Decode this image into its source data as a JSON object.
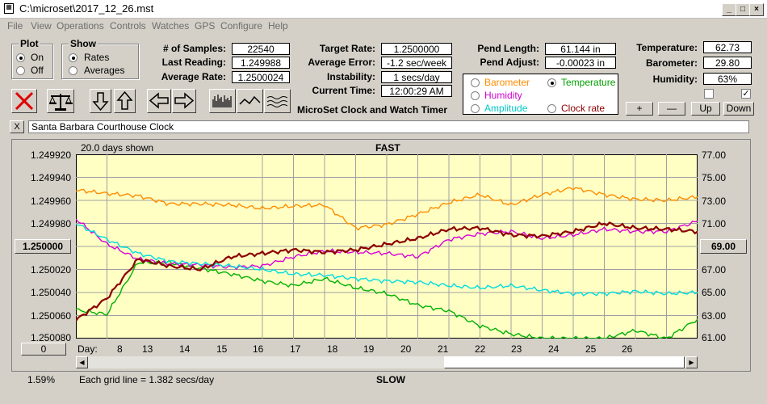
{
  "window": {
    "title": "C:\\microset\\2017_12_26.mst"
  },
  "menu": [
    "File",
    "View",
    "Operations",
    "Controls",
    "Watches",
    "GPS",
    "Configure",
    "Help"
  ],
  "plot_group": {
    "title": "Plot",
    "on_label": "On",
    "off_label": "Off",
    "selected": "On"
  },
  "show_group": {
    "title": "Show",
    "rates_label": "Rates",
    "averages_label": "Averages",
    "selected": "Rates"
  },
  "stats": {
    "samples_label": "# of Samples:",
    "samples": "22540",
    "last_reading_label": "Last Reading:",
    "last_reading": "1.249988",
    "average_rate_label": "Average Rate:",
    "average_rate": "1.2500024",
    "target_rate_label": "Target Rate:",
    "target_rate": "1.2500000",
    "average_error_label": "Average Error:",
    "average_error": "-1.2 sec/week",
    "instability_label": "Instability:",
    "instability": "1 secs/day",
    "current_time_label": "Current Time:",
    "current_time": "12:00:29 AM",
    "pend_length_label": "Pend Length:",
    "pend_length": "61.144 in",
    "pend_adjust_label": "Pend Adjust:",
    "pend_adjust": "-0.00023 in",
    "temperature_label": "Temperature:",
    "temperature": "62.73",
    "barometer_label": "Barometer:",
    "barometer": "29.80",
    "humidity_label": "Humidity:",
    "humidity": "63%"
  },
  "app_name": "MicroSet Clock and Watch Timer",
  "sensor_select": {
    "barometer": "Barometer",
    "temperature": "Temperature",
    "humidity": "Humidity",
    "amplitude": "Amplitude",
    "clock_rate": "Clock rate",
    "selected": "Temperature"
  },
  "adjust_buttons": {
    "plus": "+",
    "minus": "—",
    "up": "Up",
    "down": "Down"
  },
  "clock_name": "Santa Barbara Courthouse Clock",
  "close_x": "X",
  "colors": {
    "barometer": "#ff8c00",
    "temperature": "#00b000",
    "humidity": "#d800d8",
    "amplitude": "#00dddd",
    "clock_rate": "#8b0000",
    "plot_bg": "#ffffc4"
  },
  "chart_header": {
    "days_shown": "20.0 days shown",
    "fast": "FAST",
    "slow": "SLOW",
    "grid_note": "Each grid line = 1.382 secs/day",
    "percent": "1.59%",
    "day_label": "Day:"
  },
  "chart_data": {
    "type": "line",
    "x_label": "Day:",
    "x_ticks": [
      8,
      13,
      14,
      15,
      16,
      17,
      18,
      19,
      20,
      21,
      22,
      23,
      24,
      25,
      26
    ],
    "left_axis": {
      "ticks": [
        "1.249920",
        "1.249940",
        "1.249960",
        "1.249980",
        "1.250000",
        "1.250020",
        "1.250040",
        "1.250060",
        "1.250080"
      ],
      "center_button": "1.250000",
      "bottom_button": "0"
    },
    "right_axis": {
      "ticks": [
        "77.00",
        "75.00",
        "73.00",
        "71.00",
        "69.00",
        "67.00",
        "65.00",
        "63.00",
        "61.00"
      ],
      "center_button": "69.00"
    },
    "series": [
      {
        "name": "Barometer",
        "color": "#ff8c00",
        "x": [
          7,
          8,
          9,
          10,
          11,
          12,
          13,
          14,
          15,
          16,
          17,
          18,
          19,
          20,
          21,
          22,
          23,
          24,
          25,
          26,
          27
        ],
        "y": [
          73.9,
          73.6,
          73.4,
          72.7,
          72.7,
          72.6,
          72.3,
          72.5,
          72.6,
          70.6,
          70.9,
          71.8,
          72.8,
          73.5,
          72.6,
          73.5,
          74.1,
          73.5,
          73.1,
          73.0,
          73.3
        ]
      },
      {
        "name": "Temperature",
        "color": "#00b000",
        "x": [
          7,
          8,
          9,
          10,
          11,
          12,
          13,
          14,
          15,
          16,
          17,
          18,
          19,
          20,
          21,
          22,
          23,
          24,
          25,
          26,
          27
        ],
        "y": [
          63.5,
          63.1,
          67.6,
          67.6,
          67.1,
          66.6,
          66.0,
          65.6,
          66.2,
          65.4,
          64.9,
          63.9,
          63.4,
          62.1,
          61.4,
          61.0,
          61.0,
          61.0,
          61.7,
          61.0,
          62.7
        ]
      },
      {
        "name": "Humidity",
        "color": "#d800d8",
        "x": [
          7,
          8,
          9,
          10,
          11,
          12,
          13,
          14,
          15,
          16,
          17,
          18,
          19,
          20,
          21,
          22,
          23,
          24,
          25,
          26,
          27
        ],
        "y": [
          71.4,
          69.2,
          67.9,
          67.5,
          67.4,
          67.2,
          67.3,
          68.1,
          68.6,
          68.5,
          68.4,
          68.1,
          69.6,
          70.1,
          70.3,
          69.7,
          70.0,
          70.5,
          70.3,
          70.3,
          71.2
        ]
      },
      {
        "name": "Amplitude",
        "color": "#00dddd",
        "x": [
          7,
          8,
          9,
          10,
          11,
          12,
          13,
          14,
          15,
          16,
          17,
          18,
          19,
          20,
          21,
          22,
          23,
          24,
          25,
          26,
          27
        ],
        "y": [
          71.0,
          69.6,
          68.4,
          67.7,
          67.5,
          67.3,
          67.0,
          66.6,
          66.5,
          66.2,
          66.0,
          65.9,
          65.6,
          65.4,
          65.6,
          65.2,
          64.9,
          64.9,
          65.1,
          64.9,
          65.0
        ]
      },
      {
        "name": "Clock rate",
        "color": "#8b0000",
        "x": [
          7,
          8,
          9,
          10,
          11,
          12,
          13,
          14,
          15,
          16,
          17,
          18,
          19,
          20,
          21,
          22,
          23,
          24,
          25,
          26,
          27
        ],
        "y": [
          62.6,
          64.5,
          67.9,
          67.3,
          67.0,
          68.1,
          68.4,
          68.7,
          68.5,
          68.7,
          69.2,
          69.7,
          70.5,
          70.6,
          70.0,
          69.9,
          70.3,
          71.0,
          70.6,
          70.5,
          70.3
        ]
      }
    ]
  }
}
